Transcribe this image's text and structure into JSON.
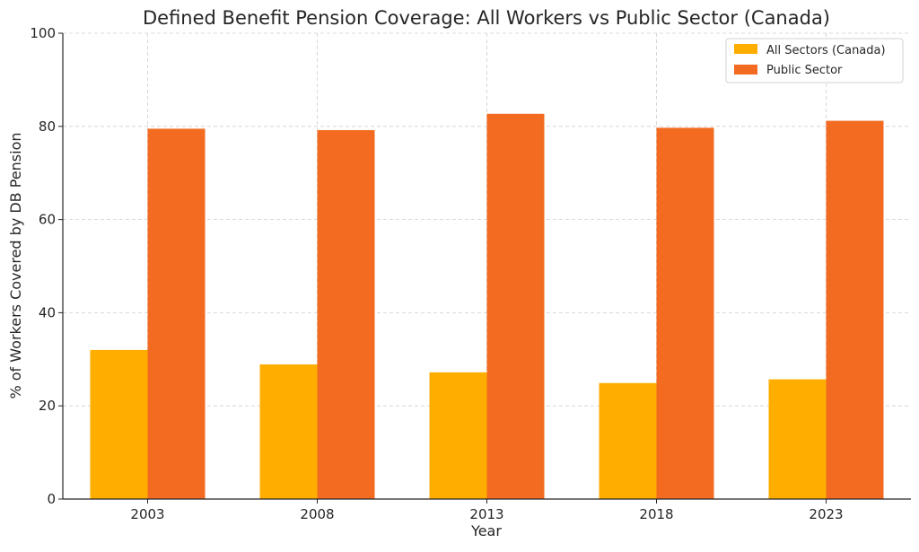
{
  "chart_data": {
    "type": "bar",
    "title": "Defined Benefit Pension Coverage: All Workers vs Public Sector (Canada)",
    "xlabel": "Year",
    "ylabel": "% of Workers Covered by DB Pension",
    "categories": [
      "2003",
      "2008",
      "2013",
      "2018",
      "2023"
    ],
    "ylim": [
      0,
      100
    ],
    "yticks": [
      0,
      20,
      40,
      60,
      80,
      100
    ],
    "grid": true,
    "legend_position": "top-right",
    "series": [
      {
        "name": "All Sectors (Canada)",
        "color": "#FFAE00",
        "values": [
          32.0,
          28.9,
          27.2,
          24.9,
          25.7
        ]
      },
      {
        "name": "Public Sector",
        "color": "#F26B21",
        "values": [
          79.5,
          79.2,
          82.7,
          79.7,
          81.2
        ]
      }
    ]
  }
}
